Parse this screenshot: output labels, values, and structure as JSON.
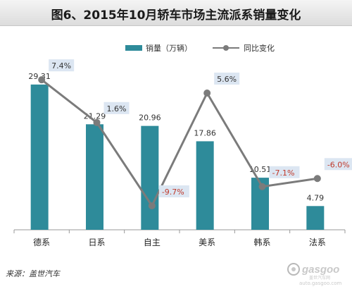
{
  "colors": {
    "bar": "#2e8b9a",
    "line": "#7b7b7b",
    "label_positive": "#333333",
    "label_negative": "#c0392b",
    "label_bg": "#dce6f2"
  },
  "chart_data": {
    "type": "bar",
    "title": "图6、2015年10月轿车市场主流派系销量变化",
    "categories": [
      "德系",
      "日系",
      "自主",
      "美系",
      "韩系",
      "法系"
    ],
    "series": [
      {
        "name": "销量（万辆）",
        "type": "bar",
        "values": [
          29.31,
          21.29,
          20.96,
          17.86,
          10.51,
          4.79
        ]
      },
      {
        "name": "同比变化",
        "type": "line",
        "values": [
          7.4,
          1.6,
          -9.7,
          5.6,
          -7.1,
          -6.0
        ]
      }
    ],
    "bar_labels": [
      "29.31",
      "21.29",
      "20.96",
      "17.86",
      "10.51",
      "4.79"
    ],
    "line_labels": [
      "7.4%",
      "1.6%",
      "-9.7%",
      "5.6%",
      "-7.1%",
      "-6.0%"
    ],
    "ylim_bars": [
      0,
      32
    ],
    "ylim_line": [
      -12,
      10
    ],
    "legend_position": "top",
    "grid": false
  },
  "source": "来源：盖世汽车",
  "watermark": {
    "logo": "gasgoo",
    "tagline": "盖世汽车网",
    "url": "auto.gasgoo.com"
  }
}
